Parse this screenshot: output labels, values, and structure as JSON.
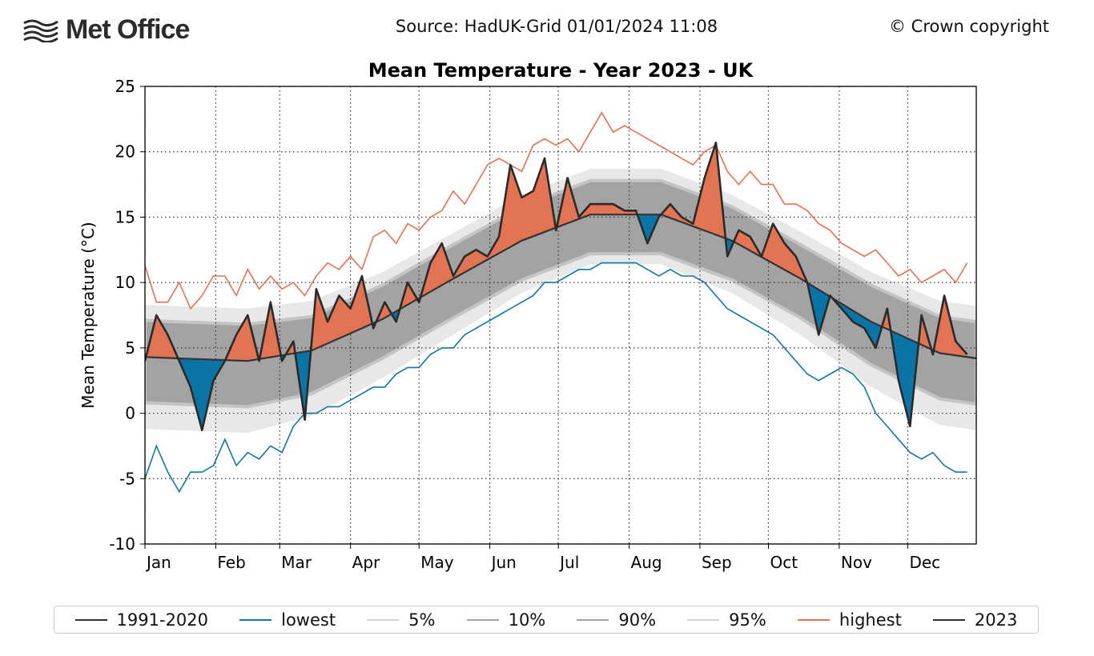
{
  "header": {
    "logo_text": "Met Office",
    "source": "Source: HadUK-Grid 01/01/2024 11:08",
    "copyright": "© Crown copyright"
  },
  "chart_data": {
    "type": "area",
    "title": "Mean Temperature - Year 2023 - UK",
    "xlabel": "",
    "ylabel": "Mean Temperature (°C)",
    "ylim": [
      -10,
      25
    ],
    "yticks": [
      -10,
      -5,
      0,
      5,
      10,
      15,
      20,
      25
    ],
    "xlim_day_of_year": [
      1,
      365
    ],
    "month_labels": [
      "Jan",
      "Feb",
      "Mar",
      "Apr",
      "May",
      "Jun",
      "Jul",
      "Aug",
      "Sep",
      "Oct",
      "Nov",
      "Dec"
    ],
    "month_start_days": [
      1,
      32,
      60,
      91,
      121,
      152,
      182,
      213,
      244,
      274,
      305,
      335
    ],
    "grid": true,
    "legend_position": "bottom",
    "colors": {
      "mean": "#333333",
      "lowest": "#0f78a8",
      "highest": "#e8704f",
      "band_5_95": "#e8e8e8",
      "band_10_90": "#a3a3a3",
      "above_fill": "#e27453",
      "below_fill": "#0a74a6",
      "year": "#2a2a2a"
    },
    "climatology": {
      "days": [
        1,
        15,
        46,
        74,
        105,
        135,
        166,
        196,
        227,
        258,
        288,
        319,
        349,
        365
      ],
      "mean_1991_2020": [
        4.3,
        4.2,
        4.0,
        4.8,
        7.2,
        10.2,
        13.2,
        15.2,
        15.2,
        13.2,
        10.3,
        7.0,
        4.6,
        4.2
      ],
      "p5": [
        -1.2,
        -1.3,
        -1.5,
        -0.2,
        2.7,
        5.9,
        9.2,
        11.4,
        11.4,
        9.2,
        6.0,
        2.0,
        -0.9,
        -1.3
      ],
      "p10": [
        0.8,
        0.7,
        0.5,
        1.5,
        4.2,
        7.2,
        10.2,
        12.2,
        12.2,
        10.2,
        7.3,
        3.7,
        1.1,
        0.7
      ],
      "p90": [
        7.1,
        7.0,
        6.8,
        7.4,
        9.8,
        12.8,
        15.8,
        17.8,
        17.8,
        15.8,
        12.9,
        9.8,
        7.4,
        7.0
      ],
      "p95": [
        8.3,
        8.2,
        8.0,
        8.6,
        10.8,
        13.7,
        16.7,
        18.7,
        18.7,
        16.7,
        13.9,
        10.8,
        8.6,
        8.2
      ]
    },
    "daily": {
      "days_start": 1,
      "days_step": 5,
      "highest": [
        11.3,
        8.5,
        8.5,
        10,
        8,
        9,
        10.5,
        10.5,
        9,
        11,
        9.5,
        10.5,
        9.5,
        10,
        9,
        10.5,
        11.5,
        11,
        12,
        11,
        13.5,
        14,
        13,
        14.5,
        14,
        15,
        15.5,
        17,
        16,
        17.5,
        19,
        19.5,
        19,
        18.5,
        20.5,
        21,
        20.5,
        21,
        20,
        21.5,
        23,
        21.5,
        22,
        21.5,
        21,
        20.5,
        20,
        19.5,
        19,
        20,
        20.5,
        18.5,
        17.5,
        18.5,
        17.5,
        17.5,
        16,
        16,
        15.5,
        14.5,
        14,
        13,
        12.5,
        12,
        12.5,
        11.5,
        10.5,
        11,
        10,
        10.5,
        11,
        10,
        11.5
      ],
      "lowest": [
        -5,
        -2.5,
        -4.5,
        -6,
        -4.5,
        -4.5,
        -4,
        -2,
        -4,
        -3,
        -3.5,
        -2.5,
        -3,
        -1,
        0,
        0,
        0.5,
        0.5,
        1,
        1.5,
        2,
        2,
        3,
        3.5,
        3.5,
        4.5,
        5,
        5,
        6,
        6.5,
        7,
        7.5,
        8,
        8.5,
        9,
        10,
        10,
        10.5,
        11,
        11,
        11.5,
        11.5,
        11.5,
        11.5,
        11,
        10.5,
        11,
        10.5,
        10.5,
        10,
        9,
        8,
        7.5,
        7,
        6.5,
        6,
        5,
        4,
        3,
        2.5,
        3,
        3.5,
        3,
        2,
        0,
        -1,
        -2,
        -3,
        -3.5,
        -3,
        -4,
        -4.5,
        -4.5
      ],
      "year_2023": [
        4,
        7.5,
        6,
        4,
        2,
        -1.3,
        2.5,
        4,
        6,
        7.5,
        4,
        8.5,
        4,
        5.5,
        -0.5,
        9.5,
        7,
        9,
        8,
        10.5,
        6.5,
        8.5,
        7,
        10,
        8.5,
        11.5,
        13,
        10.5,
        12,
        12.5,
        12,
        13.5,
        19,
        16.5,
        17,
        19.5,
        14,
        18,
        15,
        16,
        16,
        16,
        15.5,
        15.5,
        13,
        15,
        16,
        15,
        14.5,
        18,
        20.7,
        12,
        14,
        13.5,
        12,
        14.5,
        13,
        12,
        10,
        6,
        9,
        8,
        7,
        6.5,
        5,
        8,
        2.5,
        -1,
        7.5,
        4.5,
        9,
        5.5,
        4.5
      ]
    },
    "legend": [
      {
        "label": "1991-2020",
        "color": "#333333"
      },
      {
        "label": "lowest",
        "color": "#0f78a8"
      },
      {
        "label": "5%",
        "color": "#d4d4d4"
      },
      {
        "label": "10%",
        "color": "#a3a3a3"
      },
      {
        "label": "90%",
        "color": "#a3a3a3"
      },
      {
        "label": "95%",
        "color": "#d4d4d4"
      },
      {
        "label": "highest",
        "color": "#e8704f"
      },
      {
        "label": "2023",
        "color": "#2a2a2a"
      }
    ]
  }
}
